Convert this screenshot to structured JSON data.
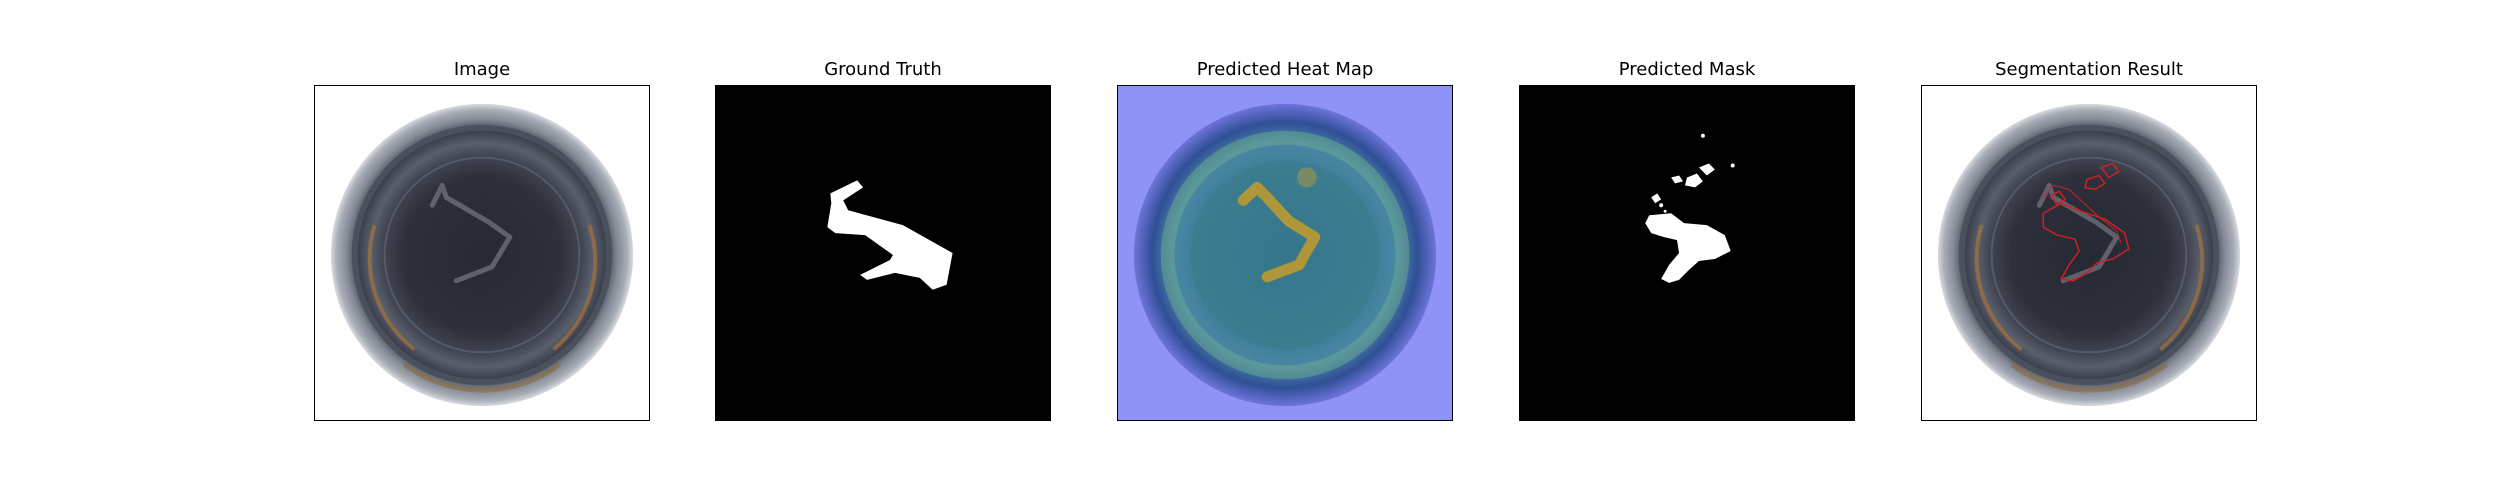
{
  "panels": [
    {
      "title": "Image"
    },
    {
      "title": "Ground Truth"
    },
    {
      "title": "Predicted Heat Map"
    },
    {
      "title": "Predicted Mask"
    },
    {
      "title": "Segmentation Result"
    }
  ],
  "colors": {
    "frame_border": "#000000",
    "mask_background": "#000000",
    "mask_foreground": "#ffffff",
    "heatmap_background": "#8f93f5",
    "heatmap_hot": "#d9a21a",
    "contour": "#d02020",
    "bottle_dark": "#2a2d38",
    "bottle_rim": "#7c828f",
    "bottle_glow": "#b07a3a"
  }
}
